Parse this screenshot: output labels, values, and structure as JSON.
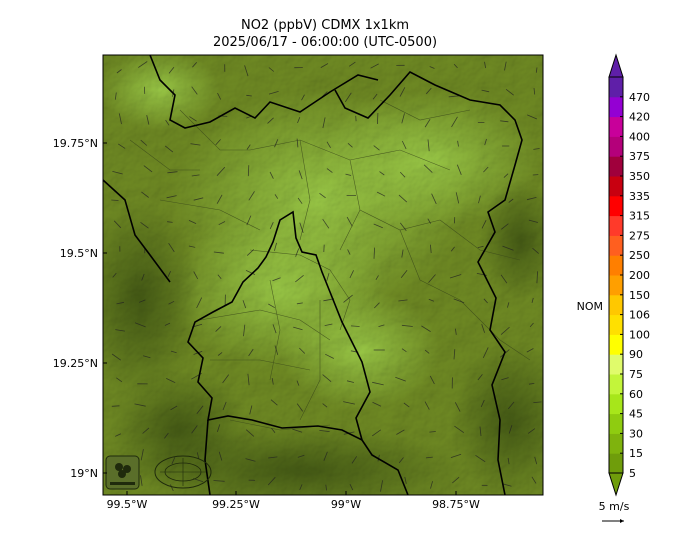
{
  "title_line1": "NO2 (ppbV) CDMX 1x1km",
  "title_line2": "2025/06/17 - 06:00:00 (UTC-0500)",
  "map": {
    "x_ticks": [
      "99.5°W",
      "99.25°W",
      "99°W",
      "98.75°W"
    ],
    "y_ticks": [
      "19.75°N",
      "19.5°N",
      "19.25°N",
      "19°N"
    ]
  },
  "colorbar": {
    "ticks": [
      "5",
      "15",
      "30",
      "45",
      "60",
      "75",
      "90",
      "100",
      "106",
      "150",
      "200",
      "250",
      "275",
      "315",
      "335",
      "350",
      "375",
      "400",
      "420",
      "470"
    ],
    "colors": [
      "#6f9d0b",
      "#7fb30d",
      "#8fcc10",
      "#a7e61a",
      "#c3f53a",
      "#e0fb6b",
      "#ffff00",
      "#ffe000",
      "#ffc800",
      "#ff9f00",
      "#ff7f00",
      "#ff5f1f",
      "#ff3a2a",
      "#ff0000",
      "#c80010",
      "#a0003c",
      "#b4007a",
      "#c8009a",
      "#9400d3",
      "#5f1fa8"
    ],
    "nom_label": "NOM",
    "wind_label": "5 m/s"
  },
  "logos": [
    "sedema-logo",
    "institution-seal"
  ]
}
